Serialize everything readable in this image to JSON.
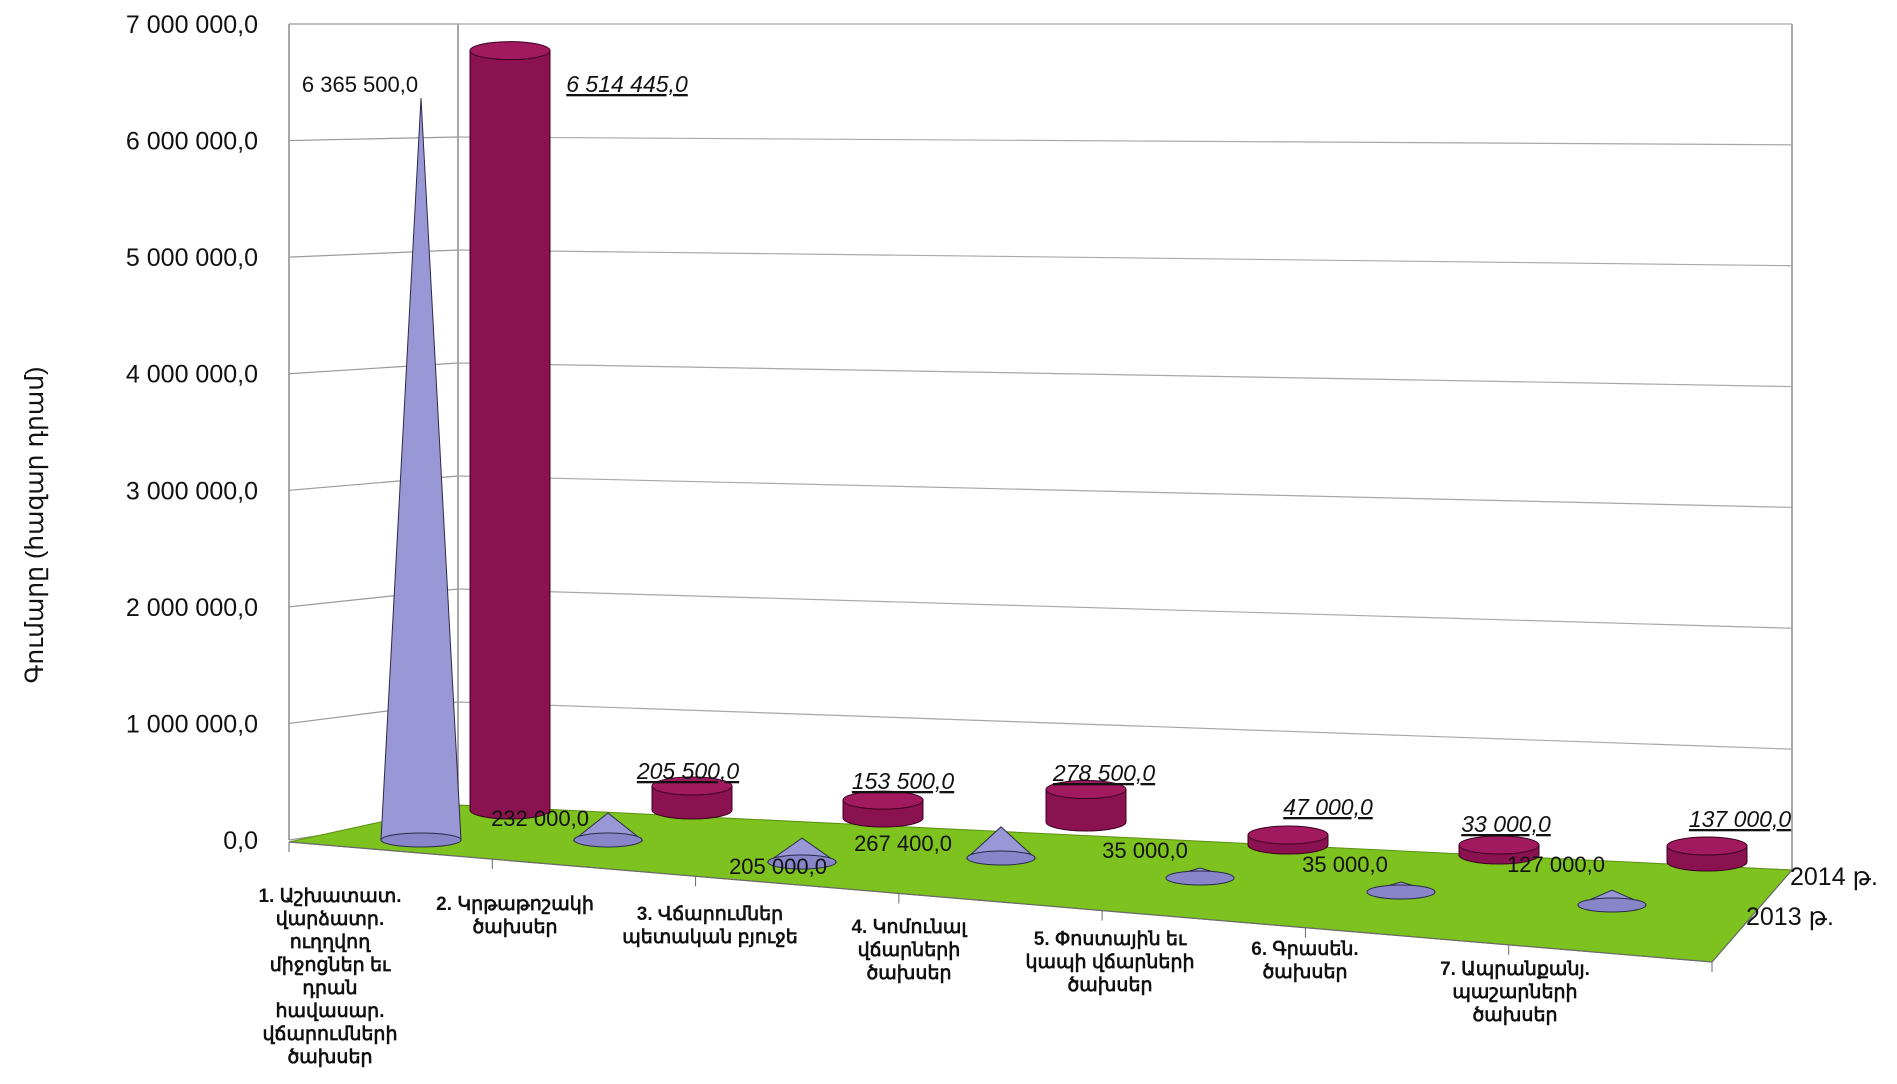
{
  "chart_data": {
    "type": "bar",
    "ylabel": "Գումարը (հազար դրամ)",
    "ylim": [
      0,
      7000000
    ],
    "yticks": [
      "0,0",
      "1 000 000,0",
      "2 000 000,0",
      "3 000 000,0",
      "4 000 000,0",
      "5 000 000,0",
      "6 000 000,0",
      "7 000 000,0"
    ],
    "categories": [
      "1. Աշխատատ. վարձատր. ուղղվող միջոցներ եւ դրան հավասար. վճարումների ծախսեր",
      "2. Կրթաթոշակի ծախսեր",
      "3. Վճարումներ պետական բյուջե",
      "4. Կոմունալ վճարների ծախսեր",
      "5. Փոստային եւ կապի վճարների ծախսեր",
      "6. Գրասեն. ծախսեր",
      "7. Ապրանքանյ. պաշարների ծախսեր"
    ],
    "series": [
      {
        "name": "2013 թ.",
        "values": [
          6365500,
          232000,
          205000,
          267400,
          35000,
          35000,
          127000
        ],
        "labels": [
          "6 365 500,0",
          "232 000,0",
          "205 000,0",
          "267 400,0",
          "35 000,0",
          "35 000,0",
          "127 000,0"
        ]
      },
      {
        "name": "2014 թ.",
        "values": [
          6514445,
          205500,
          153500,
          278500,
          47000,
          33000,
          137000
        ],
        "labels": [
          "6 514 445,0",
          "205 500,0",
          "153 500,0",
          "278 500,0",
          "47 000,0",
          "33 000,0",
          "137 000,0"
        ]
      }
    ],
    "grid": true,
    "colors": {
      "s2013": "#9a97d6",
      "s2014": "#8b1250",
      "floor": "#7dc21e",
      "grid": "#9a9a9a"
    }
  }
}
